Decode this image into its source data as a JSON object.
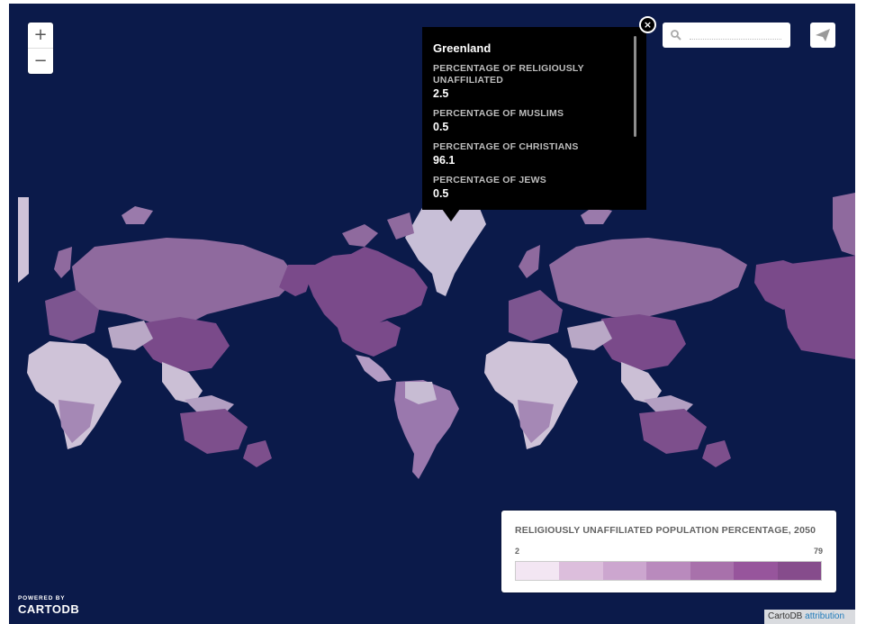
{
  "map": {
    "zoom_in_label": "+",
    "zoom_out_label": "−",
    "search_placeholder": "",
    "colors": {
      "ocean": "#0b1a4a"
    }
  },
  "popup": {
    "title": "Greenland",
    "close_label": "×",
    "fields": [
      {
        "label": "PERCENTAGE OF RELIGIOUSLY UNAFFILIATED",
        "value": "2.5"
      },
      {
        "label": "PERCENTAGE OF MUSLIMS",
        "value": "0.5"
      },
      {
        "label": "PERCENTAGE OF CHRISTIANS",
        "value": "96.1"
      },
      {
        "label": "PERCENTAGE OF JEWS",
        "value": "0.5"
      }
    ]
  },
  "legend": {
    "title": "RELIGIOUSLY UNAFFILIATED POPULATION PERCENTAGE, 2050",
    "min": "2",
    "max": "79",
    "colors": [
      "#f3e6f3",
      "#dcbedc",
      "#cca6cf",
      "#b98abd",
      "#a871ab",
      "#97559c",
      "#864c8c"
    ]
  },
  "branding": {
    "powered_by": "POWERED BY",
    "logo_text": "CARTODB"
  },
  "attribution": {
    "prefix": "CartoDB",
    "link": "attribution"
  }
}
